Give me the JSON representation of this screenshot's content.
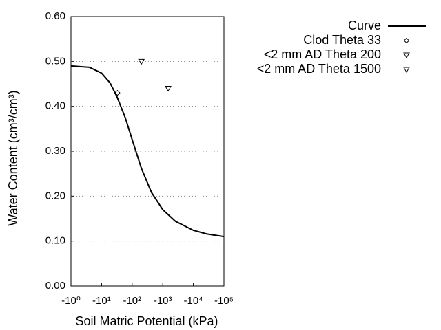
{
  "chart_data": {
    "type": "line",
    "x_label": "Soil Matric Potential (kPa)",
    "y_label": "Water Content (cm³/cm³)",
    "xscale": "log",
    "xlim": [
      -1,
      -100000
    ],
    "xticks": [
      {
        "value": -1,
        "label": "-10⁰"
      },
      {
        "value": -10,
        "label": "-10¹"
      },
      {
        "value": -100,
        "label": "-10²"
      },
      {
        "value": -1000,
        "label": "-10³"
      },
      {
        "value": -10000,
        "label": "-10⁴"
      },
      {
        "value": -100000,
        "label": "-10⁵"
      }
    ],
    "ylim": [
      0,
      0.6
    ],
    "yticks": [
      {
        "value": 0,
        "label": "0.00"
      },
      {
        "value": 0.1,
        "label": "0.10"
      },
      {
        "value": 0.2,
        "label": "0.20"
      },
      {
        "value": 0.3,
        "label": "0.30"
      },
      {
        "value": 0.4,
        "label": "0.40"
      },
      {
        "value": 0.5,
        "label": "0.50"
      },
      {
        "value": 0.6,
        "label": "0.60"
      }
    ],
    "grid": true,
    "legend": "top-right",
    "series": [
      {
        "name": "Curve",
        "color": "#000000",
        "style": "line",
        "x": [
          -1,
          -4,
          -10,
          -19,
          -32,
          -60,
          -100,
          -200,
          -430,
          -1000,
          -2600,
          -10000,
          -27000,
          -100000
        ],
        "values": [
          0.49,
          0.487,
          0.474,
          0.452,
          0.421,
          0.374,
          0.326,
          0.262,
          0.208,
          0.17,
          0.144,
          0.124,
          0.116,
          0.11
        ]
      },
      {
        "name": "Clod Theta 33",
        "color": "#000000",
        "style": "marker",
        "marker": "diamond",
        "x": [
          -33
        ],
        "values": [
          0.43
        ]
      },
      {
        "name": "<2 mm AD Theta 200",
        "color": "#000000",
        "style": "marker",
        "marker": "triangle",
        "x": [
          -200
        ],
        "values": [
          0.5
        ]
      },
      {
        "name": "<2 mm AD Theta 1500",
        "color": "#000000",
        "style": "marker",
        "marker": "triangle",
        "x": [
          -1500
        ],
        "values": [
          0.44
        ]
      }
    ]
  }
}
